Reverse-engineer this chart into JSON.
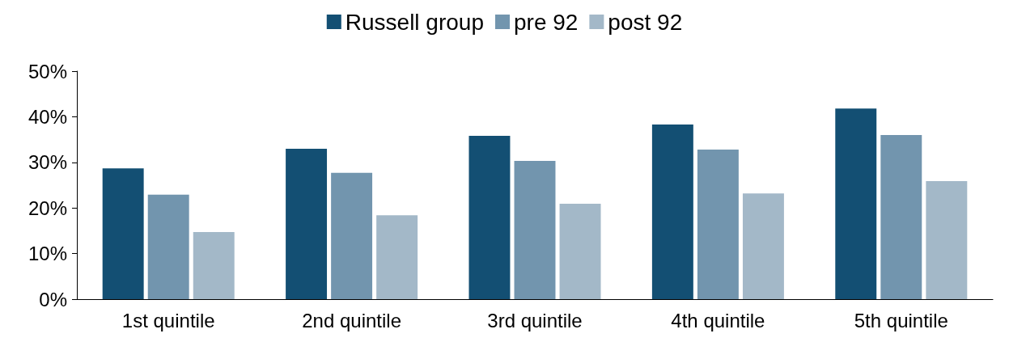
{
  "chart_data": {
    "type": "bar",
    "categories": [
      "1st quintile",
      "2nd quintile",
      "3rd quintile",
      "4th quintile",
      "5th quintile"
    ],
    "series": [
      {
        "name": "Russell group",
        "color": "#134f73",
        "values": [
          28.7,
          33.0,
          35.8,
          38.3,
          41.8
        ]
      },
      {
        "name": "pre 92",
        "color": "#7295ae",
        "values": [
          22.9,
          27.7,
          30.3,
          32.8,
          36.0
        ]
      },
      {
        "name": "post 92",
        "color": "#a3b8c8",
        "values": [
          14.7,
          18.4,
          20.9,
          23.2,
          25.9
        ]
      }
    ],
    "ylim": [
      0,
      50
    ],
    "yticks": [
      {
        "value": 0,
        "label": "0%"
      },
      {
        "value": 10,
        "label": "10%"
      },
      {
        "value": 20,
        "label": "20%"
      },
      {
        "value": 30,
        "label": "30%"
      },
      {
        "value": 40,
        "label": "40%"
      },
      {
        "value": 50,
        "label": "50%"
      }
    ],
    "grid": false,
    "legend": "top"
  }
}
